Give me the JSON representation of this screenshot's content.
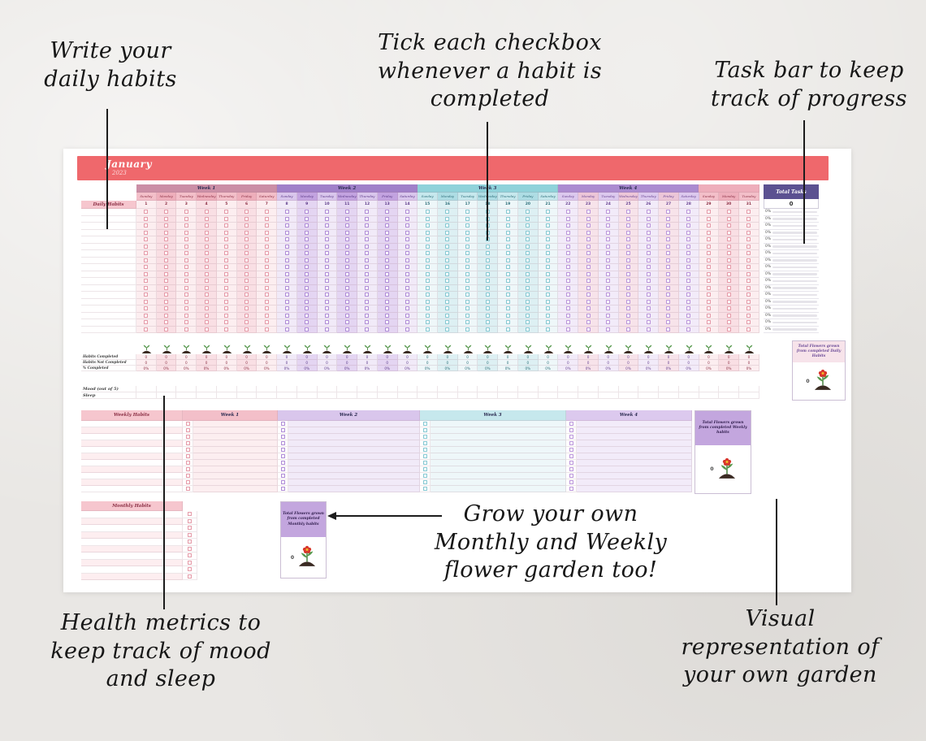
{
  "annotations": {
    "write_daily": "Write your\ndaily habits",
    "tick_checkbox": "Tick each checkbox\nwhenever a habit is\ncompleted",
    "task_bar": "Task bar to keep\ntrack of progress",
    "grow_garden": "Grow your own\nMonthly and Weekly\nflower garden too!",
    "health_metrics": "Health metrics to\nkeep track of mood\nand sleep",
    "visual_garden": "Visual\nrepresentation of\nyour own garden"
  },
  "sheet": {
    "title": {
      "month": "January",
      "year": "2023"
    },
    "daily": {
      "habits_label": "Daily Habits",
      "rows": 18,
      "weeks": [
        {
          "label": "Week 1",
          "theme": "pink",
          "days": [
            "Sunday",
            "Monday",
            "Tuesday",
            "Wednesday",
            "Thursday",
            "Friday",
            "Saturday"
          ],
          "dates": [
            "1",
            "2",
            "3",
            "4",
            "5",
            "6",
            "7"
          ]
        },
        {
          "label": "Week 2",
          "theme": "purple",
          "days": [
            "Sunday",
            "Monday",
            "Tuesday",
            "Wednesday",
            "Thursday",
            "Friday",
            "Saturday"
          ],
          "dates": [
            "8",
            "9",
            "10",
            "11",
            "12",
            "13",
            "14"
          ]
        },
        {
          "label": "Week 3",
          "theme": "teal",
          "days": [
            "Sunday",
            "Monday",
            "Tuesday",
            "Wednesday",
            "Thursday",
            "Friday",
            "Saturday"
          ],
          "dates": [
            "15",
            "16",
            "17",
            "18",
            "19",
            "20",
            "21"
          ]
        },
        {
          "label": "Week 4",
          "theme": "violet",
          "days": [
            "Sunday",
            "Monday",
            "Tuesday",
            "Wednesday",
            "Thursday",
            "Friday",
            "Saturday"
          ],
          "dates": [
            "22",
            "23",
            "24",
            "25",
            "26",
            "27",
            "28"
          ]
        }
      ],
      "extra_days": {
        "theme": "pink",
        "days": [
          "Sunday",
          "Monday",
          "Tuesday"
        ],
        "dates": [
          "29",
          "30",
          "31"
        ]
      }
    },
    "totals": {
      "label": "Total Tasks",
      "value": "0",
      "percent": "0%",
      "percent_rows": 18
    },
    "garden_stats": {
      "rows": [
        {
          "label": "Habits Completed",
          "value": "0"
        },
        {
          "label": "Habits Not Completed",
          "value": "0"
        },
        {
          "label": "% Completed",
          "value": "0%"
        }
      ],
      "mood_label": "Mood (out of 5)",
      "sleep_label": "Sleep",
      "daily_flowers": {
        "caption": "Total Flowers grown from completed Daily Habits",
        "value": "0"
      }
    },
    "weekly": {
      "header_label": "Weekly Habits",
      "weeks": [
        "Week 1",
        "Week 2",
        "Week 3",
        "Week 4"
      ],
      "rows": 11,
      "flowers": {
        "caption": "Total Flowers grown from completed Weekly habits",
        "value": "0"
      }
    },
    "monthly": {
      "header_label": "Monthly Habits",
      "rows": 10,
      "flowers": {
        "caption": "Total Flowers grown from completed Monthly habits",
        "value": "0"
      }
    },
    "colors": {
      "banner": "#ef686c",
      "header_pink": "#f6c6ce",
      "totals_header": "#5b5191",
      "flower_box_purple": "#c3a6de",
      "flower_box_pink": "#f7e3ea",
      "themes": {
        "pink": {
          "band": "#cb8fa6",
          "day_a": "#f3bfc9",
          "day_b": "#eeaebb",
          "col_a": "#fceef0",
          "col_b": "#f9dfe4",
          "check": "#e59aa8",
          "text": "#8d3247"
        },
        "purple": {
          "band": "#a080c9",
          "day_a": "#d9c6ec",
          "day_b": "#c3a3e0",
          "col_a": "#f1eaf8",
          "col_b": "#e4d5f2",
          "check": "#af8bd6",
          "text": "#5d3c8a"
        },
        "teal": {
          "band": "#8fd2da",
          "day_a": "#c6e8ed",
          "day_b": "#aedde4",
          "col_a": "#eef7f9",
          "col_b": "#ddf0f3",
          "check": "#86c8d2",
          "text": "#2e6f7a"
        },
        "violet": {
          "band": "#ab8bd0",
          "day_a": "#dcc9ee",
          "day_b": "#ecc6d8",
          "col_a": "#f2ebf9",
          "col_b": "#f7e3ea",
          "check": "#bb95da",
          "text": "#6a4693"
        }
      }
    }
  }
}
